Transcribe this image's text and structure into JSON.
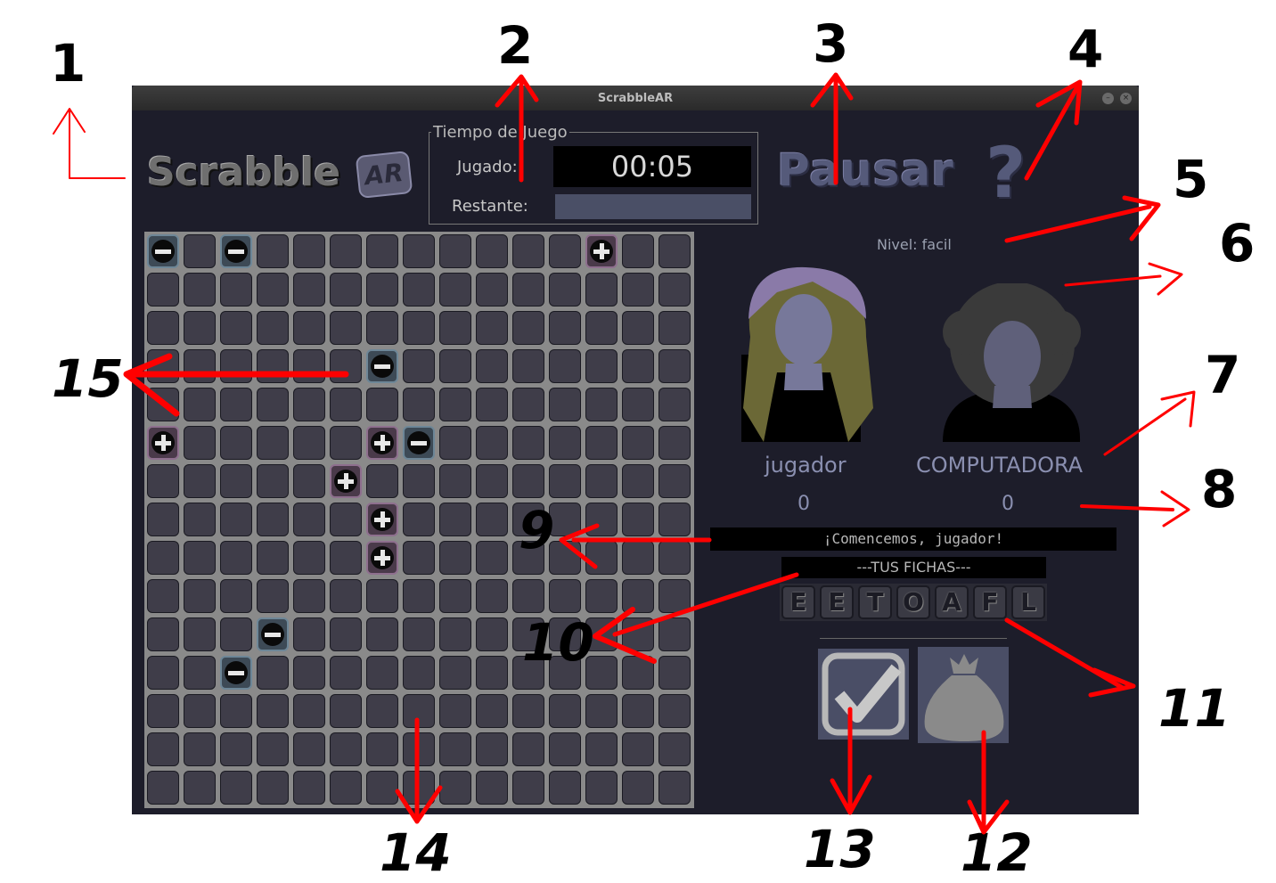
{
  "window": {
    "title": "ScrabbleAR"
  },
  "logo": {
    "text": "Scrabble",
    "badge": "AR"
  },
  "timer": {
    "legend": "Tiempo de Juego",
    "played_label": "Jugado:",
    "played_value": "00:05",
    "remaining_label": "Restante:"
  },
  "pause_label": "Pausar",
  "help_label": "?",
  "level": "Nivel: facil",
  "players": {
    "human": {
      "name": "jugador",
      "score": "0"
    },
    "computer": {
      "name": "COMPUTADORA",
      "score": "0"
    }
  },
  "message": "¡Comencemos, jugador!",
  "rack": {
    "title": "---TUS FICHAS---",
    "tiles": [
      "E",
      "E",
      "T",
      "O",
      "A",
      "F",
      "L"
    ]
  },
  "board": {
    "size": 15,
    "special_cells": [
      {
        "row": 0,
        "col": 0,
        "type": "minus"
      },
      {
        "row": 0,
        "col": 2,
        "type": "minus"
      },
      {
        "row": 0,
        "col": 12,
        "type": "plus"
      },
      {
        "row": 3,
        "col": 6,
        "type": "minus"
      },
      {
        "row": 5,
        "col": 0,
        "type": "plus"
      },
      {
        "row": 5,
        "col": 6,
        "type": "plus"
      },
      {
        "row": 5,
        "col": 7,
        "type": "minus"
      },
      {
        "row": 6,
        "col": 5,
        "type": "plus"
      },
      {
        "row": 7,
        "col": 6,
        "type": "plus"
      },
      {
        "row": 8,
        "col": 6,
        "type": "plus"
      },
      {
        "row": 10,
        "col": 3,
        "type": "minus"
      },
      {
        "row": 11,
        "col": 2,
        "type": "minus"
      }
    ]
  },
  "annotations": [
    {
      "id": "ann-1",
      "text": "1"
    },
    {
      "id": "ann-2",
      "text": "2"
    },
    {
      "id": "ann-3",
      "text": "3"
    },
    {
      "id": "ann-4",
      "text": "4"
    },
    {
      "id": "ann-5",
      "text": "5"
    },
    {
      "id": "ann-6",
      "text": "6"
    },
    {
      "id": "ann-7",
      "text": "7"
    },
    {
      "id": "ann-8",
      "text": "8"
    },
    {
      "id": "ann-9",
      "text": "9"
    },
    {
      "id": "ann-10",
      "text": "10"
    },
    {
      "id": "ann-11",
      "text": "11"
    },
    {
      "id": "ann-12",
      "text": "12"
    },
    {
      "id": "ann-13",
      "text": "13"
    },
    {
      "id": "ann-14",
      "text": "14"
    },
    {
      "id": "ann-15",
      "text": "15"
    }
  ],
  "colors": {
    "annotation": "#ff0000",
    "window_bg": "#1d1d2a",
    "accent": "#4a4e66"
  }
}
